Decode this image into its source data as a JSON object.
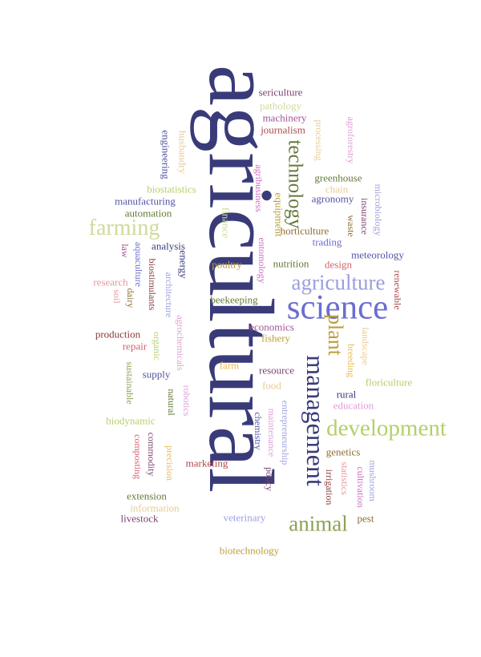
{
  "words": {
    "agricultural": "agricultural",
    "science": "science",
    "management": "management",
    "agriculture": "agriculture",
    "development": "development",
    "animal": "animal",
    "farming": "farming",
    "plant": "plant",
    "technology": "technology",
    "sericulture": "sericulture",
    "pathology": "pathology",
    "machinery": "machinery",
    "journalism": "journalism",
    "processing": "processing",
    "agroforestry": "agroforestry",
    "engineering": "engineering",
    "husbandry": "husbandry",
    "biostatistics": "biostatistics",
    "manufacturing": "manufacturing",
    "automation": "automation",
    "agribusiness": "agribusiness",
    "greenhouse": "greenhouse",
    "chain": "chain",
    "agronomy": "agronomy",
    "equipment": "equipment",
    "finance": "finance",
    "microbiology": "microbiology",
    "insurance": "insurance",
    "waste": "waste",
    "horticulture": "horticulture",
    "trading": "trading",
    "analysis": "analysis",
    "law": "law",
    "aquaculture": "aquaculture",
    "energy": "energy",
    "biostimulants": "biostimulants",
    "entomology": "entomology",
    "nutrition": "nutrition",
    "design": "design",
    "meteorology": "meteorology",
    "poultry": "poultry",
    "research": "research",
    "soil": "soil",
    "dairy": "dairy",
    "architecture": "architecture",
    "renewable": "renewable",
    "beekeeping": "beekeeping",
    "agrochemicals": "agrochemicals",
    "economics": "economics",
    "production": "production",
    "repair": "repair",
    "organic": "organic",
    "fishery": "fishery",
    "landscape": "landscape",
    "breeding": "breeding",
    "sustainable": "sustainable",
    "supply": "supply",
    "farm": "farm",
    "resource": "resource",
    "floriculture": "floriculture",
    "natural": "natural",
    "robotics": "robotics",
    "food": "food",
    "rural": "rural",
    "education": "education",
    "entrepreneurship": "entrepreneurship",
    "chemistry": "chemistry",
    "biodynamic": "biodynamic",
    "maintenance": "maintenance",
    "composting": "composting",
    "commodity": "commodity",
    "precision": "precision",
    "genetics": "genetics",
    "marketing": "marketing",
    "policy": "policy",
    "irrigation": "irrigation",
    "statistics": "statistics",
    "mushroom": "mushroom",
    "cultivation": "cultivation",
    "extension": "extension",
    "information": "information",
    "livestock": "livestock",
    "veterinary": "veterinary",
    "pest": "pest",
    "biotechnology": "biotechnology"
  }
}
